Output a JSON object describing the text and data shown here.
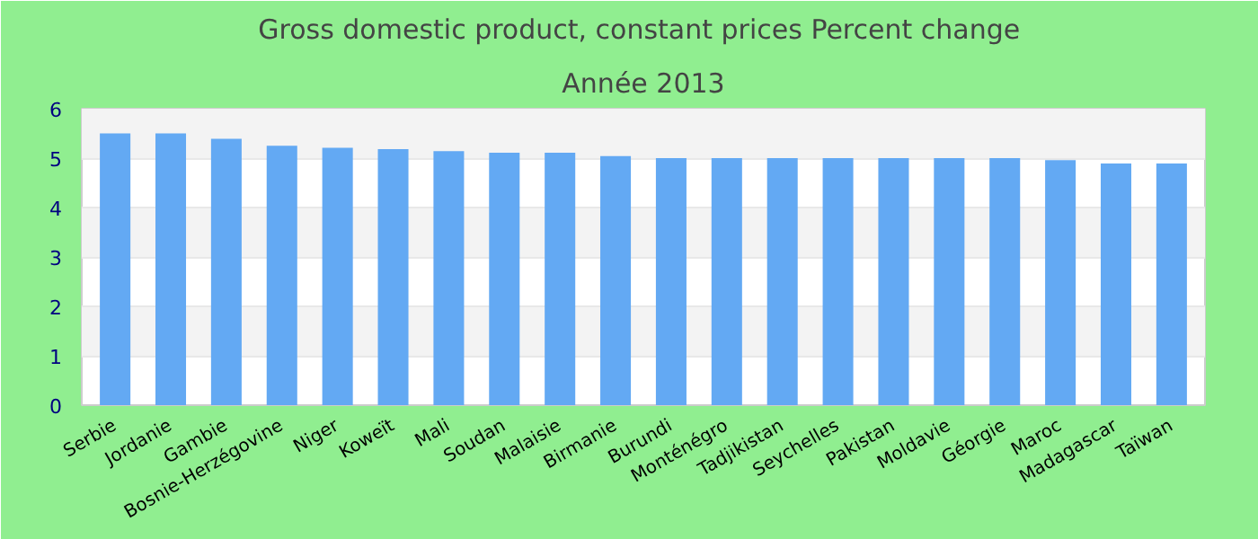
{
  "chart_data": {
    "type": "bar",
    "title": "Gross domestic product, constant prices  Percent change",
    "subtitle": "Année 2013",
    "categories": [
      "Serbie",
      "Jordanie",
      "Gambie",
      "Bosnie-Herzégovine",
      "Niger",
      "Koweït",
      "Mali",
      "Soudan",
      "Malaisie",
      "Birmanie",
      "Burundi",
      "Monténégro",
      "Tadjikistan",
      "Seychelles",
      "Pakistan",
      "Moldavie",
      "Géorgie",
      "Maroc",
      "Madagascar",
      "Taïwan"
    ],
    "values": [
      5.5,
      5.5,
      5.39,
      5.25,
      5.21,
      5.18,
      5.14,
      5.11,
      5.11,
      5.04,
      5.0,
      5.0,
      5.0,
      5.0,
      5.0,
      5.0,
      5.0,
      4.96,
      4.89,
      4.89
    ],
    "color": "#63a9f3",
    "ylim": [
      0,
      6
    ],
    "yticks": [
      0,
      1,
      2,
      3,
      4,
      5,
      6
    ],
    "grid": "y"
  }
}
